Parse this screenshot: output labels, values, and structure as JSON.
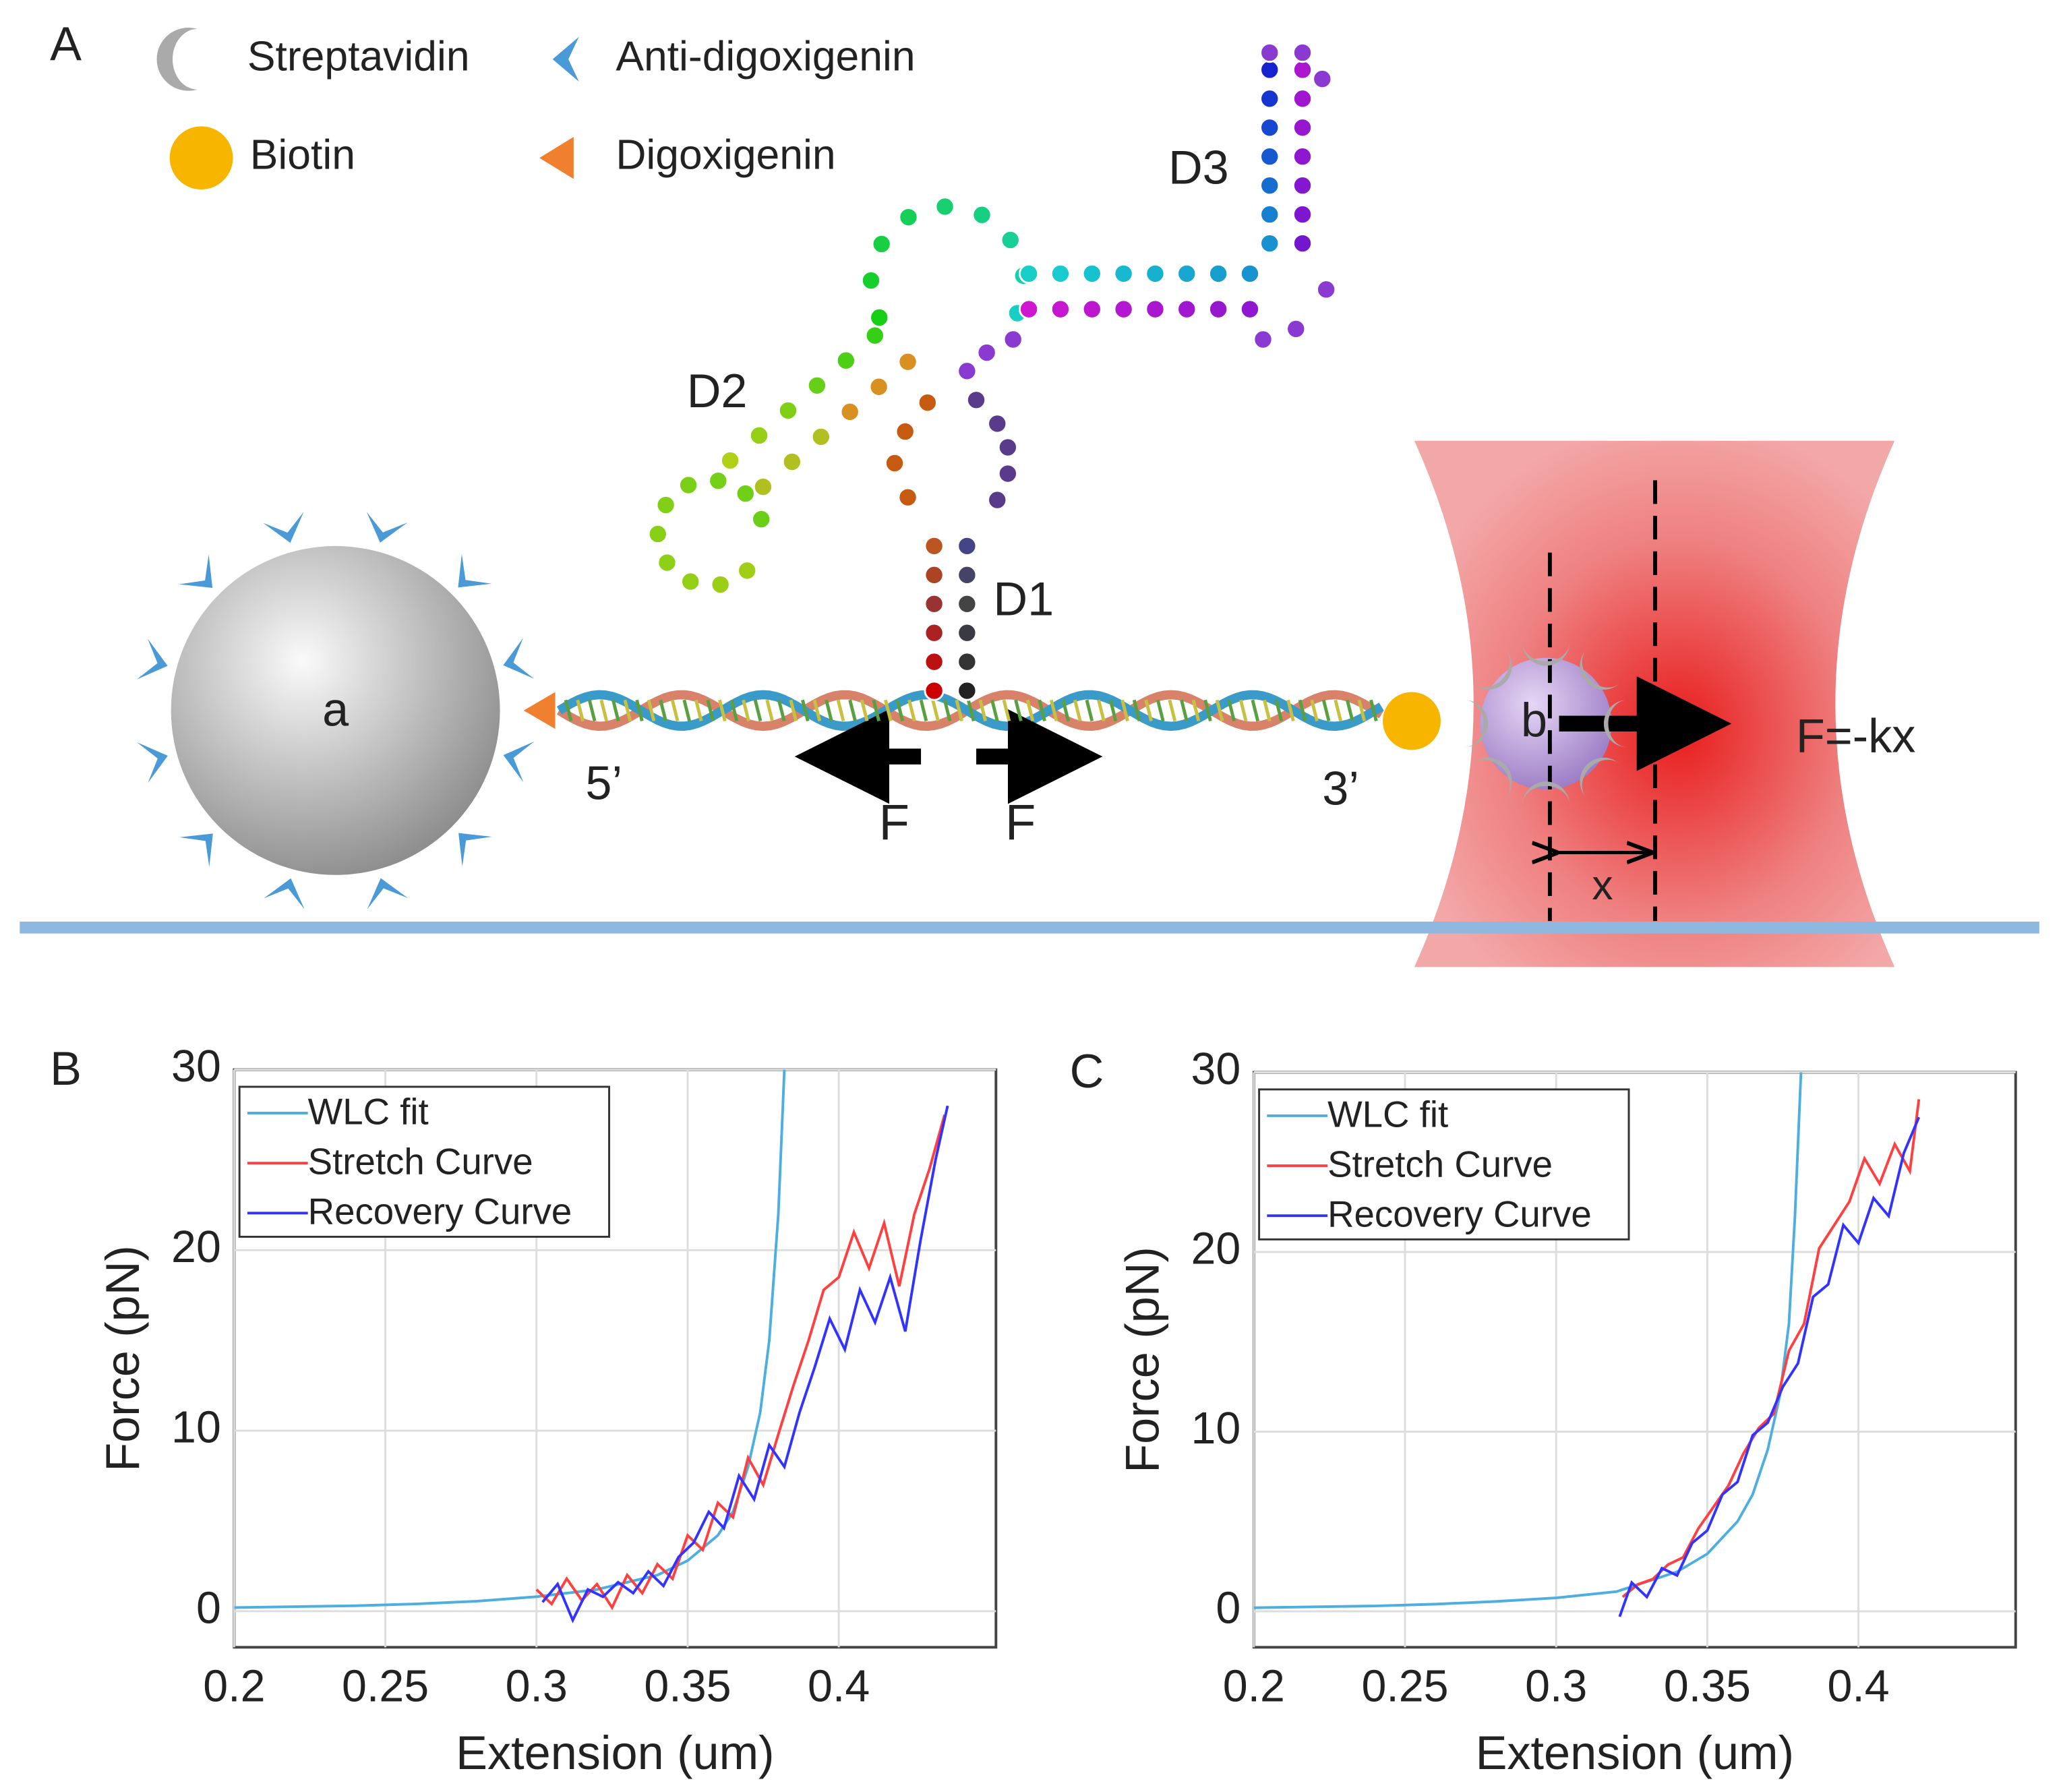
{
  "diagram": {
    "panel": "A",
    "legend": [
      "Streptavidin",
      "Anti-digoxigenin",
      "Biotin",
      "Digoxigenin"
    ],
    "domains": [
      "D3",
      "D2",
      "D1"
    ],
    "bead_a": "a",
    "bead_b": "b",
    "end_5": "5’",
    "end_3": "3’",
    "force_left": "F",
    "force_right": "F",
    "trap_force": "F=-kx",
    "displacement": "x"
  },
  "chart_data": [
    {
      "type": "line",
      "label": "B",
      "xlabel": "Extension (um)",
      "ylabel": "Force (pN)",
      "xlim": [
        0.2,
        0.452
      ],
      "ylim": [
        -2,
        30
      ],
      "xticks": [
        0.2,
        0.25,
        0.3,
        0.35,
        0.4
      ],
      "yticks": [
        0,
        10,
        20,
        30
      ],
      "grid": true,
      "legend": "upper left",
      "series": [
        {
          "name": "WLC fit",
          "color": "#4DAEDF",
          "x": [
            0.2,
            0.22,
            0.24,
            0.26,
            0.28,
            0.3,
            0.32,
            0.34,
            0.35,
            0.36,
            0.365,
            0.37,
            0.374,
            0.377,
            0.38,
            0.382
          ],
          "values": [
            0.2,
            0.25,
            0.3,
            0.4,
            0.55,
            0.8,
            1.2,
            2.0,
            2.8,
            4.2,
            5.5,
            8.0,
            11,
            15,
            22,
            30
          ]
        },
        {
          "name": "Stretch Curve",
          "color": "#FF4040",
          "x": [
            0.3,
            0.305,
            0.31,
            0.315,
            0.32,
            0.325,
            0.33,
            0.335,
            0.34,
            0.345,
            0.35,
            0.355,
            0.36,
            0.365,
            0.37,
            0.375,
            0.38,
            0.385,
            0.39,
            0.395,
            0.4,
            0.405,
            0.41,
            0.415,
            0.42,
            0.425,
            0.43,
            0.435
          ],
          "values": [
            1.2,
            0.4,
            1.8,
            0.6,
            1.5,
            0.2,
            2.0,
            1.0,
            2.6,
            1.8,
            4.2,
            3.4,
            6.0,
            5.2,
            8.5,
            7.0,
            9.8,
            12.5,
            15.0,
            17.8,
            18.5,
            21.0,
            19.0,
            21.5,
            18.0,
            22.0,
            24.5,
            27.5
          ]
        },
        {
          "name": "Recovery Curve",
          "color": "#3333FF",
          "x": [
            0.302,
            0.307,
            0.312,
            0.317,
            0.322,
            0.327,
            0.332,
            0.337,
            0.342,
            0.347,
            0.352,
            0.357,
            0.362,
            0.367,
            0.372,
            0.377,
            0.382,
            0.387,
            0.392,
            0.397,
            0.402,
            0.407,
            0.412,
            0.417,
            0.422,
            0.427,
            0.432,
            0.436
          ],
          "values": [
            0.5,
            1.5,
            -0.5,
            1.2,
            0.8,
            1.6,
            1.0,
            2.2,
            1.4,
            3.0,
            3.8,
            5.5,
            4.6,
            7.5,
            6.2,
            9.2,
            8.0,
            11.0,
            13.5,
            16.2,
            14.5,
            17.8,
            16.0,
            18.5,
            15.5,
            20.5,
            25.0,
            28.0
          ]
        }
      ]
    },
    {
      "type": "line",
      "label": "C",
      "xlabel": "Extension (um)",
      "ylabel": "Force (pN)",
      "xlim": [
        0.2,
        0.452
      ],
      "ylim": [
        -2,
        30
      ],
      "xticks": [
        0.2,
        0.25,
        0.3,
        0.35,
        0.4
      ],
      "yticks": [
        0,
        10,
        20,
        30
      ],
      "grid": true,
      "legend": "upper left",
      "series": [
        {
          "name": "WLC fit",
          "color": "#4DAEDF",
          "x": [
            0.2,
            0.22,
            0.24,
            0.26,
            0.28,
            0.3,
            0.32,
            0.34,
            0.35,
            0.36,
            0.365,
            0.37,
            0.374,
            0.377,
            0.379,
            0.381
          ],
          "values": [
            0.2,
            0.25,
            0.3,
            0.4,
            0.55,
            0.75,
            1.1,
            2.2,
            3.2,
            5,
            6.5,
            9,
            12,
            16,
            22,
            30
          ]
        },
        {
          "name": "Stretch Curve",
          "color": "#FF4040",
          "x": [
            0.322,
            0.327,
            0.332,
            0.337,
            0.342,
            0.347,
            0.352,
            0.357,
            0.362,
            0.367,
            0.372,
            0.377,
            0.382,
            0.387,
            0.392,
            0.397,
            0.402,
            0.407,
            0.412,
            0.417,
            0.42
          ],
          "values": [
            0.8,
            1.5,
            1.8,
            2.6,
            3.0,
            4.6,
            5.8,
            7.0,
            8.8,
            10.2,
            11.0,
            14.5,
            16.0,
            20.2,
            21.5,
            22.8,
            25.2,
            23.8,
            26.0,
            24.5,
            28.5
          ]
        },
        {
          "name": "Recovery Curve",
          "color": "#3333FF",
          "x": [
            0.321,
            0.325,
            0.33,
            0.335,
            0.34,
            0.345,
            0.35,
            0.355,
            0.36,
            0.365,
            0.37,
            0.375,
            0.38,
            0.385,
            0.39,
            0.395,
            0.4,
            0.405,
            0.41,
            0.415,
            0.42
          ],
          "values": [
            -0.3,
            1.6,
            0.8,
            2.4,
            2.0,
            3.8,
            4.5,
            6.5,
            7.2,
            9.8,
            10.5,
            12.5,
            13.8,
            17.5,
            18.2,
            21.5,
            20.5,
            23.0,
            22.0,
            25.5,
            27.5
          ]
        }
      ]
    }
  ]
}
